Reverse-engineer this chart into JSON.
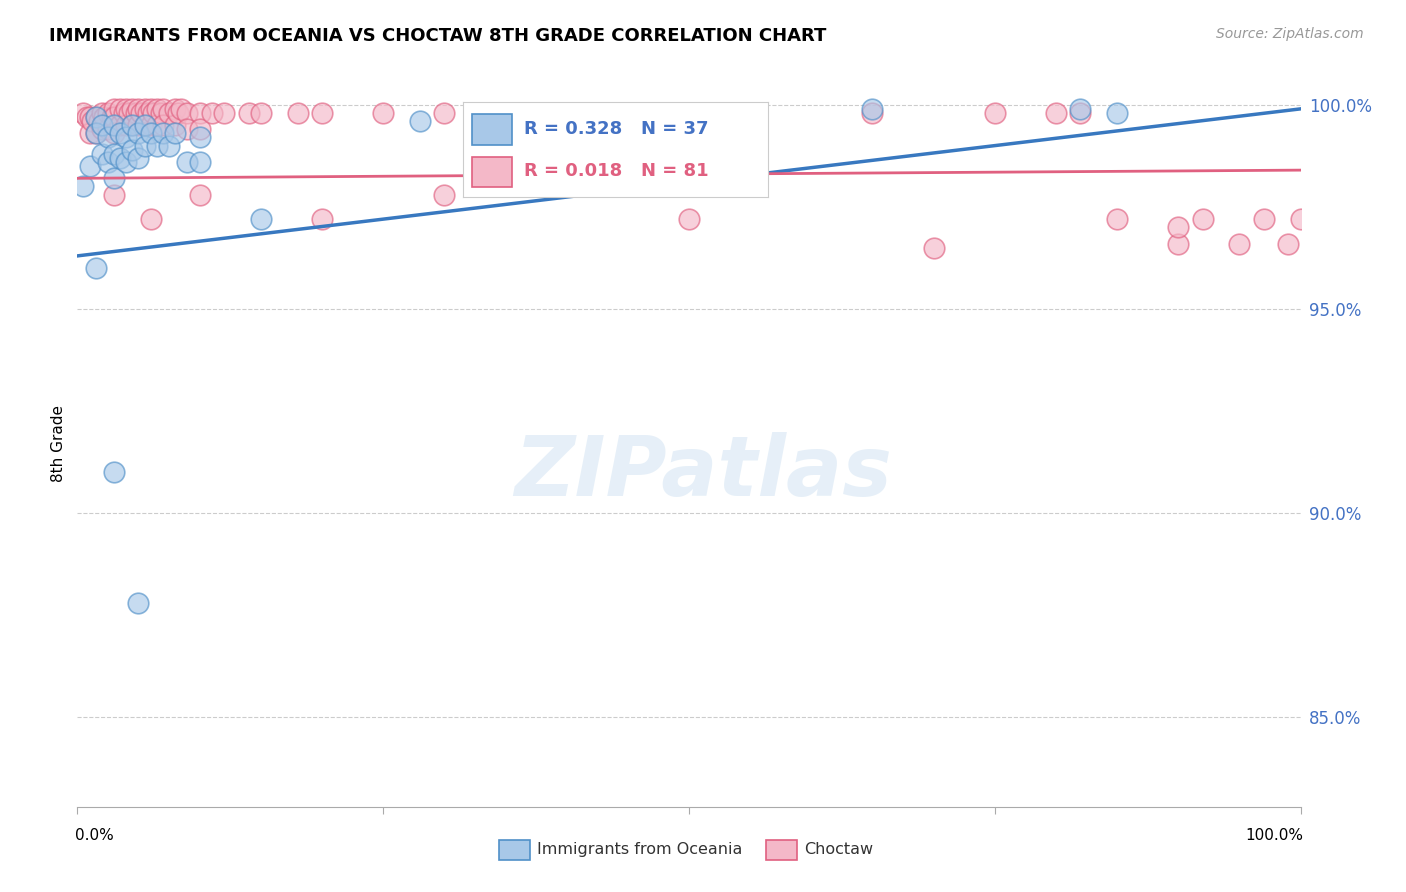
{
  "title": "IMMIGRANTS FROM OCEANIA VS CHOCTAW 8TH GRADE CORRELATION CHART",
  "source": "Source: ZipAtlas.com",
  "ylabel": "8th Grade",
  "xmin": 0.0,
  "xmax": 1.0,
  "ymin": 0.828,
  "ymax": 1.006,
  "blue_R": 0.328,
  "blue_N": 37,
  "pink_R": 0.018,
  "pink_N": 81,
  "blue_color": "#a8c8e8",
  "pink_color": "#f4b8c8",
  "blue_edge_color": "#5090c8",
  "pink_edge_color": "#e06080",
  "blue_line_color": "#3878c0",
  "pink_line_color": "#e06080",
  "legend_label_blue": "Immigrants from Oceania",
  "legend_label_pink": "Choctaw",
  "ytick_positions": [
    0.85,
    0.9,
    0.95,
    1.0
  ],
  "ytick_labels": [
    "85.0%",
    "90.0%",
    "95.0%",
    "100.0%"
  ],
  "blue_scatter_x": [
    0.005,
    0.01,
    0.015,
    0.015,
    0.02,
    0.02,
    0.025,
    0.025,
    0.03,
    0.03,
    0.03,
    0.035,
    0.035,
    0.04,
    0.04,
    0.045,
    0.045,
    0.05,
    0.05,
    0.055,
    0.055,
    0.06,
    0.065,
    0.07,
    0.075,
    0.08,
    0.09,
    0.1,
    0.1,
    0.15,
    0.28,
    0.65,
    0.82,
    0.85,
    0.015,
    0.03,
    0.05
  ],
  "blue_scatter_y": [
    0.98,
    0.985,
    0.997,
    0.993,
    0.995,
    0.988,
    0.992,
    0.986,
    0.995,
    0.988,
    0.982,
    0.993,
    0.987,
    0.992,
    0.986,
    0.995,
    0.989,
    0.993,
    0.987,
    0.995,
    0.99,
    0.993,
    0.99,
    0.993,
    0.99,
    0.993,
    0.986,
    0.992,
    0.986,
    0.972,
    0.996,
    0.999,
    0.999,
    0.998,
    0.96,
    0.91,
    0.878
  ],
  "pink_scatter_x": [
    0.005,
    0.008,
    0.01,
    0.01,
    0.012,
    0.015,
    0.015,
    0.018,
    0.02,
    0.02,
    0.022,
    0.025,
    0.025,
    0.028,
    0.03,
    0.03,
    0.03,
    0.035,
    0.035,
    0.038,
    0.04,
    0.04,
    0.042,
    0.045,
    0.045,
    0.048,
    0.05,
    0.05,
    0.052,
    0.055,
    0.055,
    0.058,
    0.06,
    0.06,
    0.062,
    0.065,
    0.065,
    0.068,
    0.07,
    0.07,
    0.075,
    0.08,
    0.08,
    0.082,
    0.085,
    0.09,
    0.09,
    0.1,
    0.1,
    0.11,
    0.12,
    0.14,
    0.15,
    0.18,
    0.2,
    0.25,
    0.3,
    0.35,
    0.4,
    0.45,
    0.5,
    0.55,
    0.65,
    0.75,
    0.8,
    0.82,
    0.85,
    0.9,
    0.92,
    0.95,
    0.97,
    0.99,
    1.0,
    0.03,
    0.06,
    0.1,
    0.2,
    0.3,
    0.5,
    0.7,
    0.9
  ],
  "pink_scatter_y": [
    0.998,
    0.997,
    0.997,
    0.993,
    0.996,
    0.997,
    0.993,
    0.996,
    0.998,
    0.994,
    0.997,
    0.998,
    0.994,
    0.997,
    0.999,
    0.997,
    0.993,
    0.999,
    0.995,
    0.998,
    0.999,
    0.995,
    0.998,
    0.999,
    0.995,
    0.998,
    0.999,
    0.995,
    0.998,
    0.999,
    0.995,
    0.998,
    0.999,
    0.995,
    0.998,
    0.999,
    0.995,
    0.998,
    0.999,
    0.995,
    0.998,
    0.999,
    0.995,
    0.998,
    0.999,
    0.998,
    0.994,
    0.998,
    0.994,
    0.998,
    0.998,
    0.998,
    0.998,
    0.998,
    0.998,
    0.998,
    0.998,
    0.998,
    0.998,
    0.998,
    0.998,
    0.998,
    0.998,
    0.998,
    0.998,
    0.998,
    0.972,
    0.966,
    0.972,
    0.966,
    0.972,
    0.966,
    0.972,
    0.978,
    0.972,
    0.978,
    0.972,
    0.978,
    0.972,
    0.965,
    0.97
  ],
  "blue_line_x0": 0.0,
  "blue_line_y0": 0.963,
  "blue_line_x1": 1.0,
  "blue_line_y1": 0.999,
  "pink_line_x0": 0.0,
  "pink_line_y0": 0.982,
  "pink_line_x1": 1.0,
  "pink_line_y1": 0.984
}
